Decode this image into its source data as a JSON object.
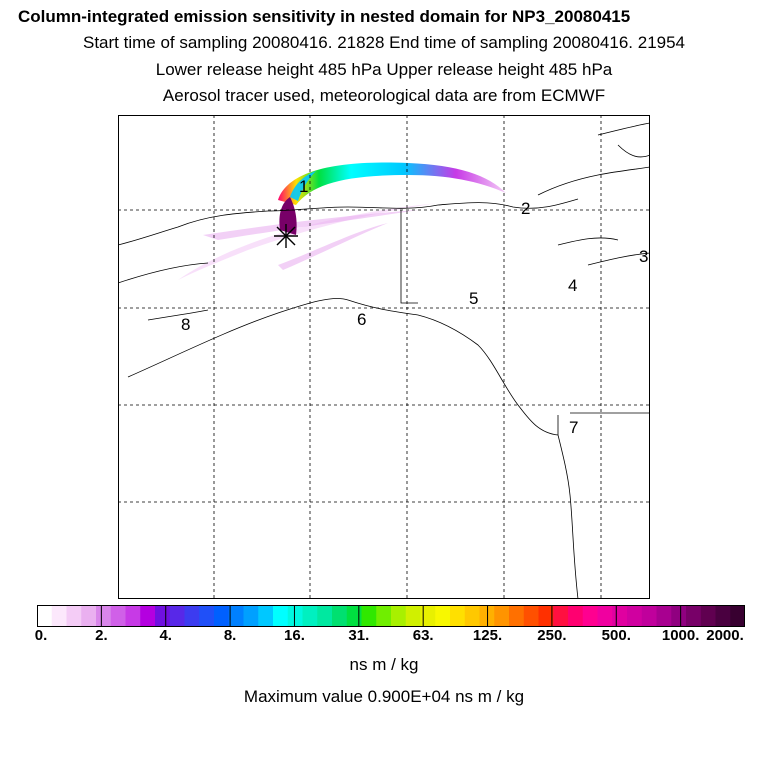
{
  "header": {
    "title": "Column-integrated emission sensitivity in nested domain for NP3_20080415",
    "line2": "Start time of sampling 20080416. 21828     End time of sampling 20080416. 21954",
    "line3": "Lower release height  485 hPa        Upper release height  485 hPa",
    "line4": "Aerosol tracer used, meteorological data are from ECMWF"
  },
  "map": {
    "release_marker": "asterisk",
    "trajectory_labels": [
      "1",
      "2",
      "3",
      "4",
      "5",
      "6",
      "7",
      "8"
    ]
  },
  "colorbar": {
    "tick_labels": [
      "0.",
      "2.",
      "4.",
      "8.",
      "16.",
      "31.",
      "63.",
      "125.",
      "250.",
      "500.",
      "1000.",
      "2000."
    ],
    "units": "ns m / kg",
    "colors": [
      "#ffffff",
      "#fce8fc",
      "#f4ccf6",
      "#eab0f0",
      "#d986ea",
      "#d060e8",
      "#c73ae6",
      "#b400e0",
      "#7010e0",
      "#5828e8",
      "#3c3cf0",
      "#2050f8",
      "#0060ff",
      "#0080ff",
      "#00a0ff",
      "#00c8ff",
      "#00ffff",
      "#00f8e0",
      "#00f0c0",
      "#00e8a0",
      "#00e070",
      "#00e040",
      "#30e800",
      "#70ee00",
      "#a8f000",
      "#d0f000",
      "#e8f000",
      "#f8f800",
      "#ffe000",
      "#ffc800",
      "#ffb000",
      "#ff9400",
      "#ff7000",
      "#ff5000",
      "#ff3000",
      "#ff1040",
      "#ff0070",
      "#ff0090",
      "#f000a0",
      "#e000a0",
      "#d000a0",
      "#c0009c",
      "#a80090",
      "#900080",
      "#780068",
      "#600050",
      "#4a0040",
      "#380030"
    ]
  },
  "footer": {
    "max_value_text": "Maximum value  0.900E+04 ns m / kg"
  }
}
